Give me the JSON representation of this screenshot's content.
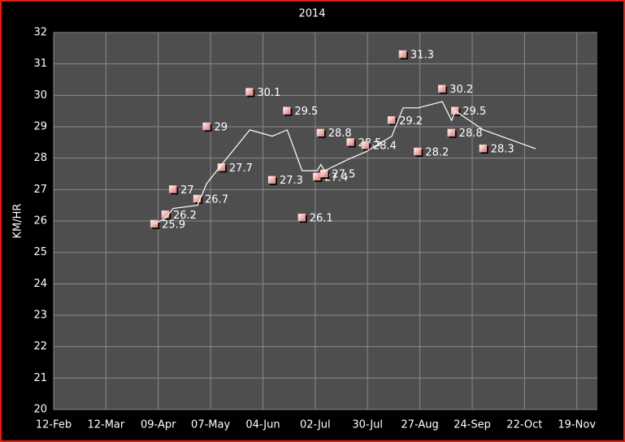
{
  "chart_data": {
    "type": "scatter",
    "title": "2014",
    "y_label": "KM/HR",
    "x": [
      "07-Apr",
      "13-Apr",
      "17-Apr",
      "30-Apr",
      "05-May",
      "13-May",
      "28-May",
      "09-Jun",
      "17-Jun",
      "25-Jun",
      "03-Jul",
      "05-Jul",
      "07-Jul",
      "21-Jul",
      "29-Jul",
      "12-Aug",
      "18-Aug",
      "26-Aug",
      "08-Sep",
      "13-Sep",
      "15-Sep",
      "30-Sep"
    ],
    "series": [
      {
        "type": "scatter",
        "color": "#f4b6b0",
        "values": [
          25.9,
          26.2,
          27,
          26.7,
          29,
          27.7,
          30.1,
          27.3,
          29.5,
          26.1,
          27.4,
          28.8,
          27.5,
          28.5,
          28.4,
          29.2,
          31.3,
          28.2,
          30.2,
          28.8,
          29.5,
          28.3
        ]
      },
      {
        "type": "line",
        "color": "#ffffff",
        "x": [
          "07-Apr",
          "13-Apr",
          "17-Apr",
          "30-Apr",
          "05-May",
          "13-May",
          "28-May",
          "09-Jun",
          "17-Jun",
          "25-Jun",
          "03-Jul",
          "05-Jul",
          "07-Jul",
          "21-Jul",
          "29-Jul",
          "12-Aug",
          "18-Aug",
          "26-Aug",
          "08-Sep",
          "13-Sep",
          "15-Sep",
          "30-Sep",
          "28-Oct"
        ],
        "values": [
          25.9,
          26.1,
          26.4,
          26.5,
          27.2,
          27.8,
          28.9,
          28.7,
          28.9,
          27.6,
          27.6,
          27.8,
          27.6,
          28.0,
          28.2,
          28.7,
          29.6,
          29.6,
          29.8,
          29.2,
          29.5,
          28.9,
          28.3
        ]
      }
    ],
    "xlim": [
      "12-Feb",
      "30-Nov"
    ],
    "xticks": [
      "12-Feb",
      "12-Mar",
      "09-Apr",
      "07-May",
      "04-Jun",
      "02-Jul",
      "30-Jul",
      "27-Aug",
      "24-Sep",
      "22-Oct",
      "19-Nov"
    ],
    "ylim": [
      20,
      32
    ],
    "yticks": [
      20,
      21,
      22,
      23,
      24,
      25,
      26,
      27,
      28,
      29,
      30,
      31,
      32
    ],
    "grid": true
  }
}
